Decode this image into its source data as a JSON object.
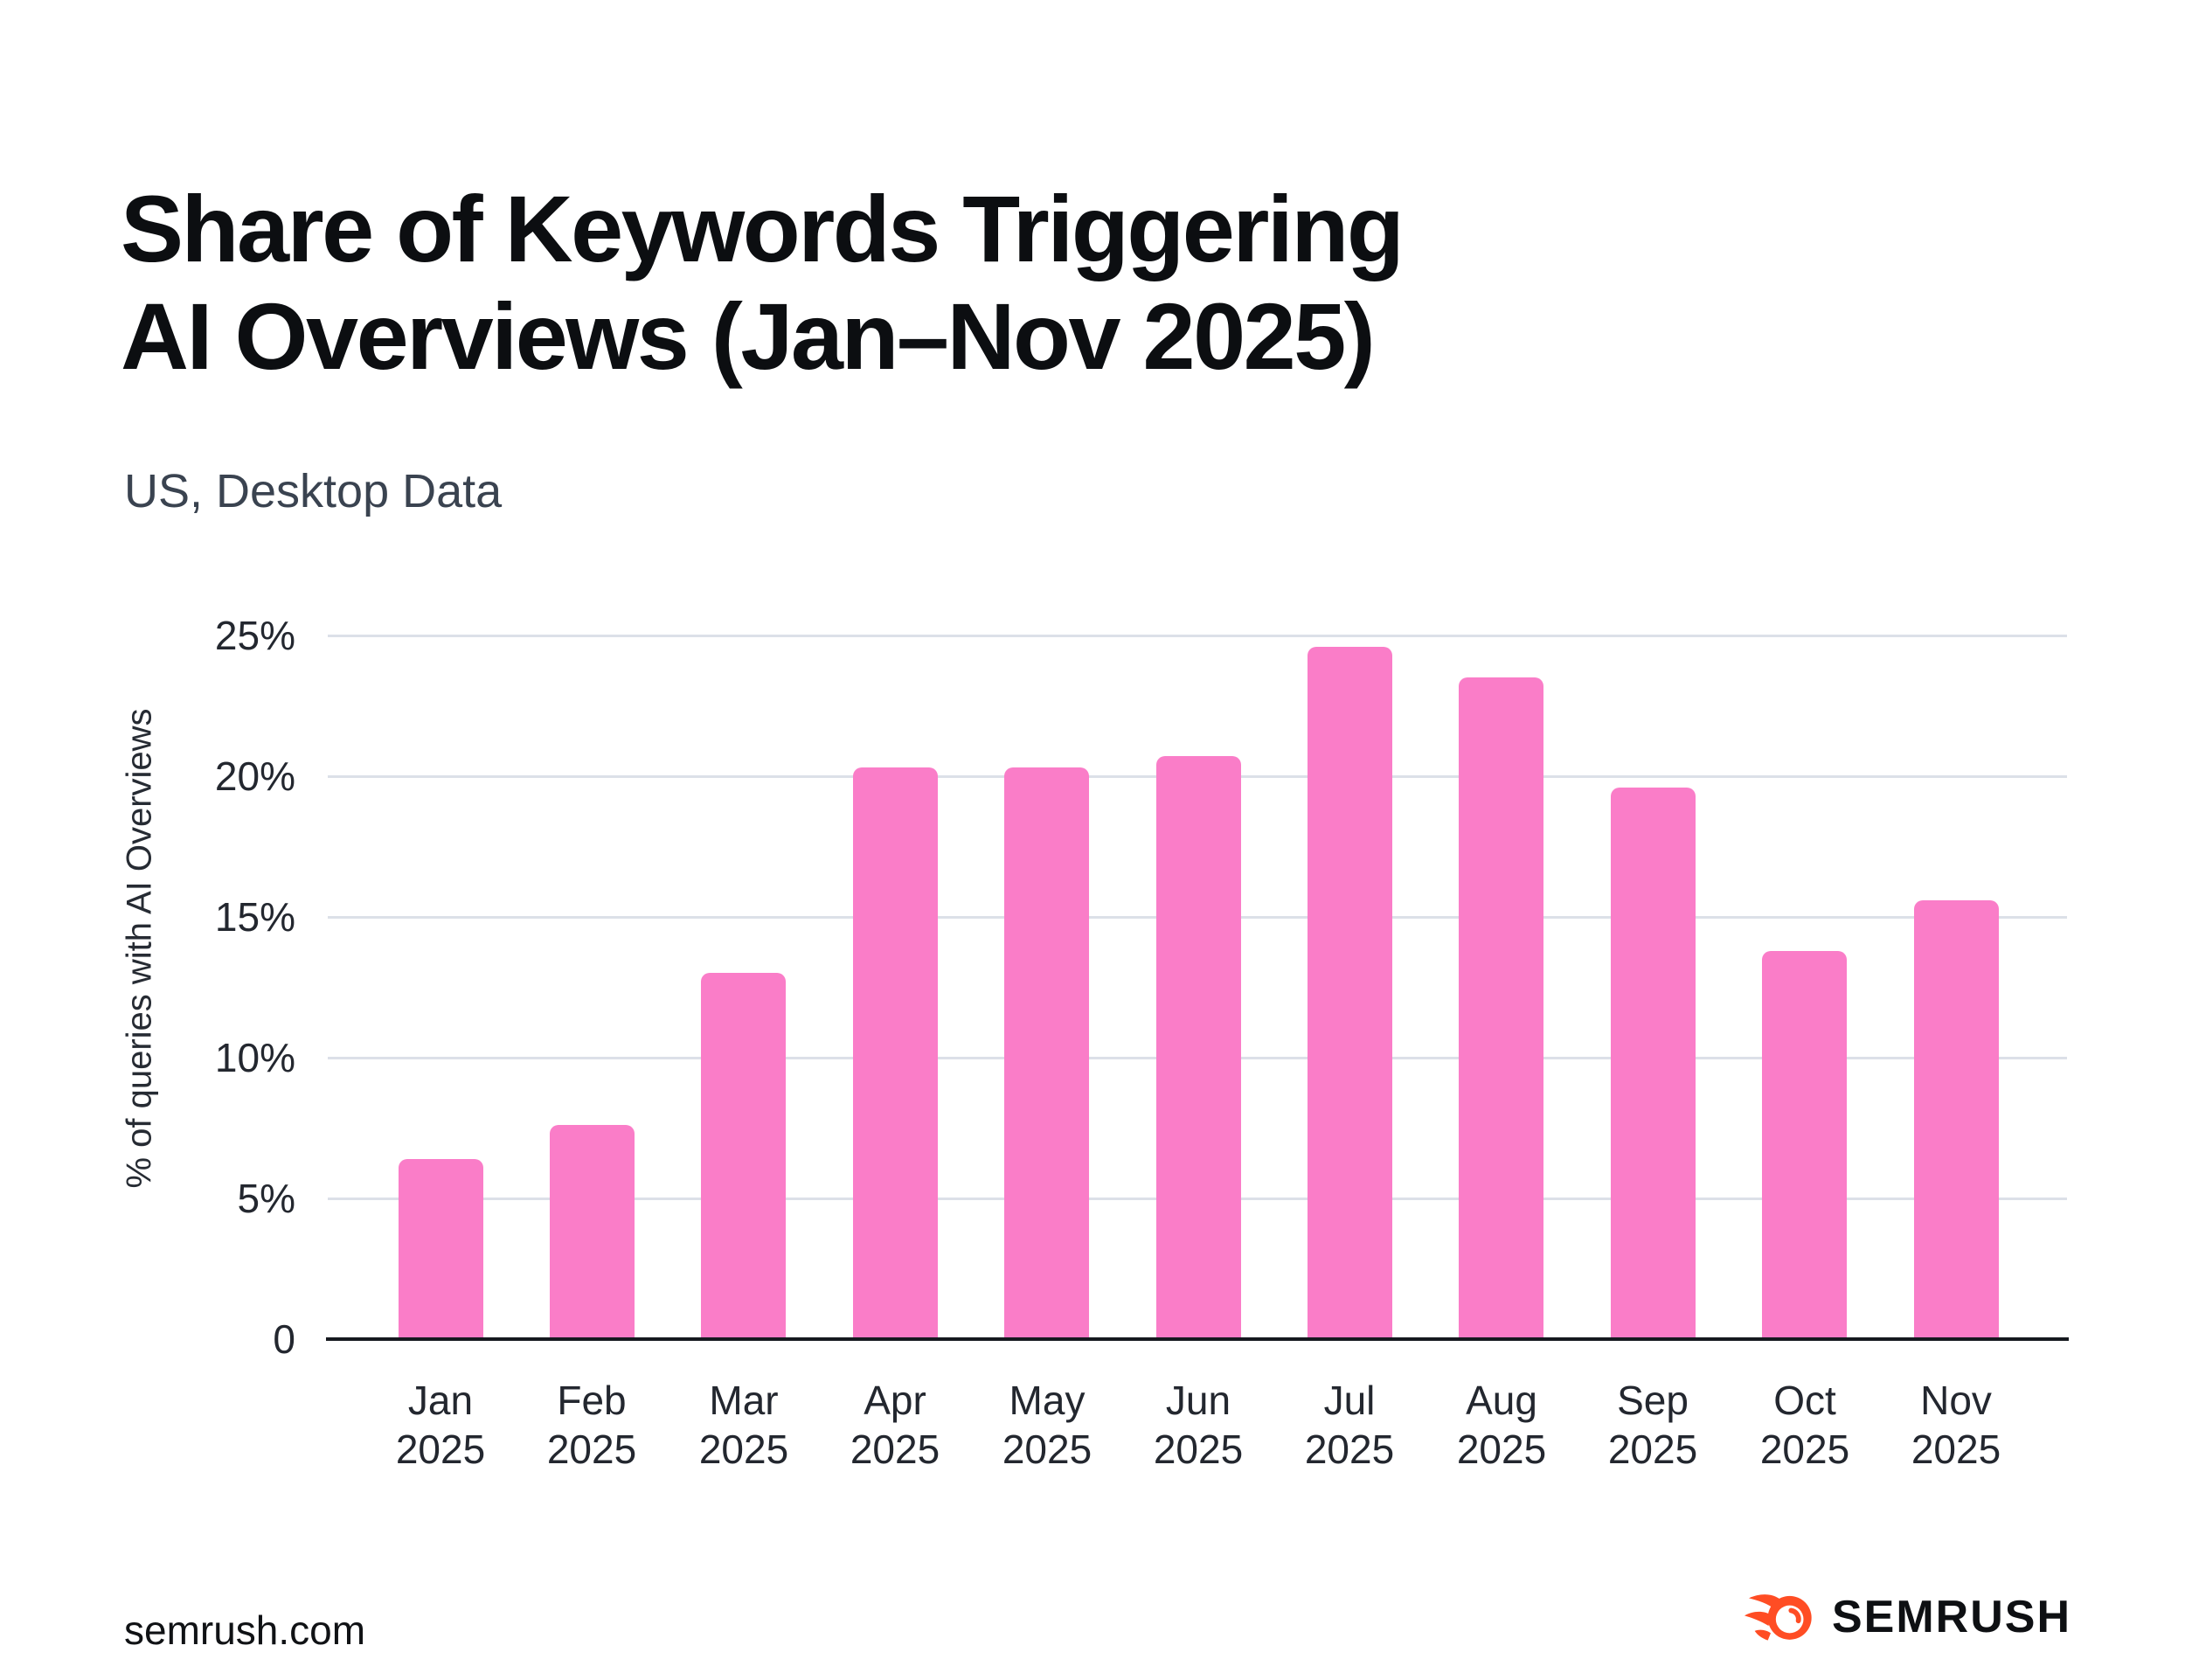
{
  "header": {
    "title_lines": [
      "Share of Keywords Triggering",
      "AI Overviews (Jan–Nov 2025)"
    ],
    "subtitle": "US, Desktop Data"
  },
  "chart_data": {
    "type": "bar",
    "title": "Share of Keywords Triggering AI Overviews (Jan–Nov 2025)",
    "subtitle": "US, Desktop Data",
    "xlabel": "",
    "ylabel": "% of queries with AI Overviews",
    "ylim": [
      0,
      25
    ],
    "yticks": [
      0,
      5,
      10,
      15,
      20,
      25
    ],
    "ytick_labels": [
      "0",
      "5%",
      "10%",
      "15%",
      "20%",
      "25%"
    ],
    "grid": "horizontal gridlines at each 5% step, light gray",
    "legend": "none",
    "bar_color": "#FA7DC8",
    "categories": [
      "Jan 2025",
      "Feb 2025",
      "Mar 2025",
      "Apr 2025",
      "May 2025",
      "Jun 2025",
      "Jul 2025",
      "Aug 2025",
      "Sep 2025",
      "Oct 2025",
      "Nov 2025"
    ],
    "category_lines": [
      [
        "Jan",
        "2025"
      ],
      [
        "Feb",
        "2025"
      ],
      [
        "Mar",
        "2025"
      ],
      [
        "Apr",
        "2025"
      ],
      [
        "May",
        "2025"
      ],
      [
        "Jun",
        "2025"
      ],
      [
        "Jul",
        "2025"
      ],
      [
        "Aug",
        "2025"
      ],
      [
        "Sep",
        "2025"
      ],
      [
        "Oct",
        "2025"
      ],
      [
        "Nov",
        "2025"
      ]
    ],
    "values": [
      6.4,
      7.6,
      13.0,
      20.3,
      20.3,
      20.7,
      24.6,
      23.5,
      19.6,
      13.8,
      15.6
    ],
    "unit": "%"
  },
  "footer": {
    "source": "semrush.com",
    "brand": "SEMRUSH"
  },
  "colors": {
    "bar_pink": "#FA7DC8",
    "gridline": "#DCE0E8",
    "axis": "#16191F",
    "title_text": "#0C0E11",
    "subtitle_text": "#3A4350",
    "brand_orange": "#FF4D24"
  },
  "icons": {
    "semrush_flame": "semrush-flame-icon"
  }
}
